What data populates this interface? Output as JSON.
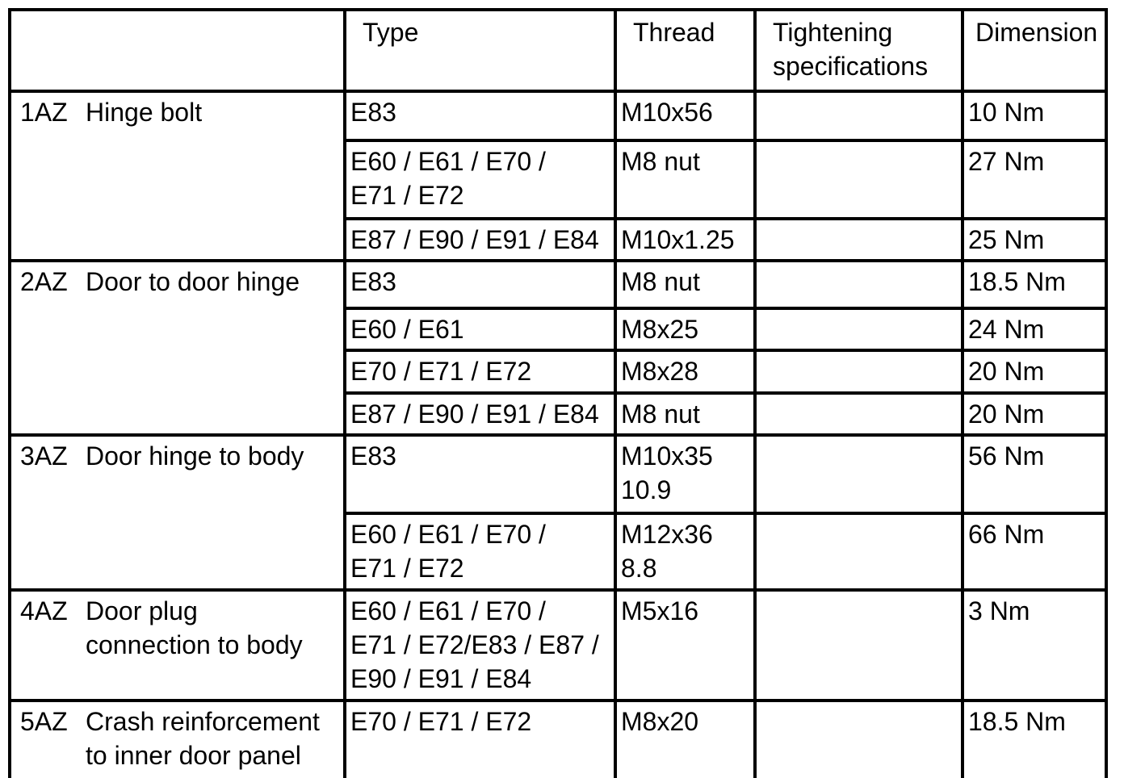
{
  "table": {
    "headers": {
      "item": "",
      "type": "Type",
      "thread": "Thread",
      "tightening": "Tightening\nspecifications",
      "dimension": "Dimension"
    },
    "sections": [
      {
        "code": "1AZ",
        "label": "Hinge bolt",
        "rows": [
          {
            "type": "E83",
            "thread": "M10x56",
            "tightening": "",
            "dimension": "10 Nm"
          },
          {
            "type": "E60 / E61 / E70 /\nE71 / E72",
            "thread": "M8 nut",
            "tightening": "",
            "dimension": "27 Nm"
          },
          {
            "type": "E87 / E90 / E91 / E84",
            "thread": "M10x1.25",
            "tightening": "",
            "dimension": "25 Nm"
          }
        ]
      },
      {
        "code": "2AZ",
        "label": "Door to door hinge",
        "rows": [
          {
            "type": "E83",
            "thread": "M8 nut",
            "tightening": "",
            "dimension": "18.5 Nm"
          },
          {
            "type": "E60 / E61",
            "thread": "M8x25",
            "tightening": "",
            "dimension": "24 Nm"
          },
          {
            "type": "E70 / E71 / E72",
            "thread": "M8x28",
            "tightening": "",
            "dimension": "20 Nm"
          },
          {
            "type": "E87 / E90 / E91 / E84",
            "thread": "M8 nut",
            "tightening": "",
            "dimension": "20 Nm"
          }
        ]
      },
      {
        "code": "3AZ",
        "label": "Door hinge to body",
        "rows": [
          {
            "type": "E83",
            "thread": "M10x35\n10.9",
            "tightening": "",
            "dimension": "56 Nm"
          },
          {
            "type": "E60 / E61 / E70 /\nE71 / E72",
            "thread": "M12x36\n8.8",
            "tightening": "",
            "dimension": "66 Nm"
          }
        ]
      },
      {
        "code": "4AZ",
        "label": "Door plug\nconnection to body",
        "rows": [
          {
            "type": "E60 / E61 / E70 /\nE71 / E72/E83 / E87 /\nE90 / E91 / E84",
            "thread": "M5x16",
            "tightening": "",
            "dimension": "3 Nm"
          }
        ]
      },
      {
        "code": "5AZ",
        "label": "Crash reinforcement\nto inner door panel",
        "rows": [
          {
            "type": "E70 / E71 / E72",
            "thread": "M8x20",
            "tightening": "",
            "dimension": "18.5 Nm"
          }
        ]
      }
    ]
  }
}
